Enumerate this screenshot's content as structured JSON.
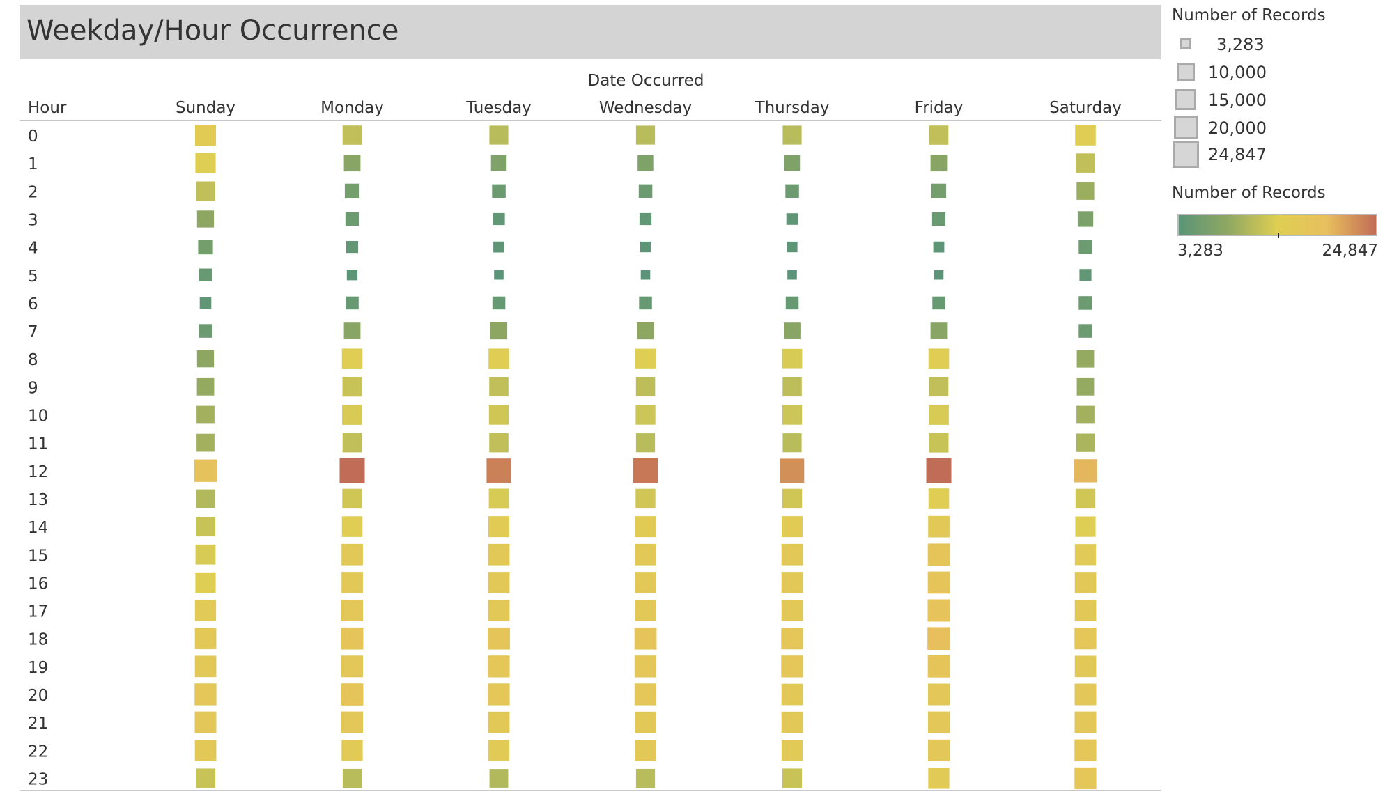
{
  "title": "Weekday/Hour Occurrence",
  "legend": {
    "size_title": "Number of Records",
    "size_items": [
      "3,283",
      "10,000",
      "15,000",
      "20,000",
      "24,847"
    ],
    "color_title": "Number of Records",
    "color_min_label": "3,283",
    "color_max_label": "24,847",
    "color_stops": [
      "#5b9478",
      "#8fa862",
      "#dfce53",
      "#e8bf5e",
      "#c16c56"
    ]
  },
  "chart_data": {
    "type": "heatmap",
    "title": "Weekday/Hour Occurrence",
    "column_header": "Date Occurred",
    "row_header": "Hour",
    "columns": [
      "Sunday",
      "Monday",
      "Tuesday",
      "Wednesday",
      "Thursday",
      "Friday",
      "Saturday"
    ],
    "rows": [
      "0",
      "1",
      "2",
      "3",
      "4",
      "5",
      "6",
      "7",
      "8",
      "9",
      "10",
      "11",
      "12",
      "13",
      "14",
      "15",
      "16",
      "17",
      "18",
      "19",
      "20",
      "21",
      "22",
      "23"
    ],
    "value_label": "Number of Records",
    "value_range": [
      3283,
      24847
    ],
    "encoding": "size and color",
    "values": [
      [
        15000,
        12000,
        11500,
        11500,
        11500,
        12000,
        14500
      ],
      [
        14000,
        8000,
        7000,
        7000,
        7000,
        8000,
        12000
      ],
      [
        12000,
        6000,
        5000,
        5000,
        5000,
        6000,
        9500
      ],
      [
        8500,
        5000,
        4000,
        4000,
        3800,
        4800,
        6800
      ],
      [
        6000,
        4000,
        3600,
        3500,
        3500,
        3600,
        5000
      ],
      [
        4500,
        3500,
        3300,
        3300,
        3300,
        3300,
        4000
      ],
      [
        3800,
        4500,
        4500,
        4500,
        4500,
        4500,
        5000
      ],
      [
        5000,
        8000,
        8500,
        8500,
        8000,
        8000,
        5000
      ],
      [
        8500,
        14500,
        14500,
        14000,
        13500,
        14500,
        9000
      ],
      [
        9000,
        12500,
        12000,
        11800,
        11800,
        12000,
        9000
      ],
      [
        10000,
        13500,
        13000,
        12800,
        12800,
        13500,
        10000
      ],
      [
        10000,
        12000,
        12000,
        11500,
        11500,
        12500,
        10500
      ],
      [
        18500,
        24847,
        23500,
        24000,
        22500,
        24847,
        20000
      ],
      [
        11000,
        13000,
        13500,
        13000,
        13000,
        14500,
        13000
      ],
      [
        12500,
        14500,
        15000,
        15000,
        15000,
        16000,
        14000
      ],
      [
        13500,
        16000,
        16000,
        16000,
        16000,
        17500,
        15500
      ],
      [
        14000,
        16000,
        16000,
        16000,
        16000,
        17500,
        16000
      ],
      [
        15500,
        16500,
        16000,
        16000,
        16000,
        18000,
        16000
      ],
      [
        16000,
        17500,
        17500,
        17500,
        17000,
        19000,
        17000
      ],
      [
        16000,
        16500,
        17000,
        17000,
        17000,
        17500,
        16000
      ],
      [
        17000,
        17500,
        17000,
        17000,
        16000,
        16500,
        16500
      ],
      [
        16500,
        16500,
        16000,
        16000,
        16000,
        16500,
        16500
      ],
      [
        16000,
        15500,
        15500,
        16000,
        15500,
        16500,
        17000
      ],
      [
        12500,
        11500,
        11000,
        11500,
        12500,
        15500,
        17000
      ]
    ]
  }
}
